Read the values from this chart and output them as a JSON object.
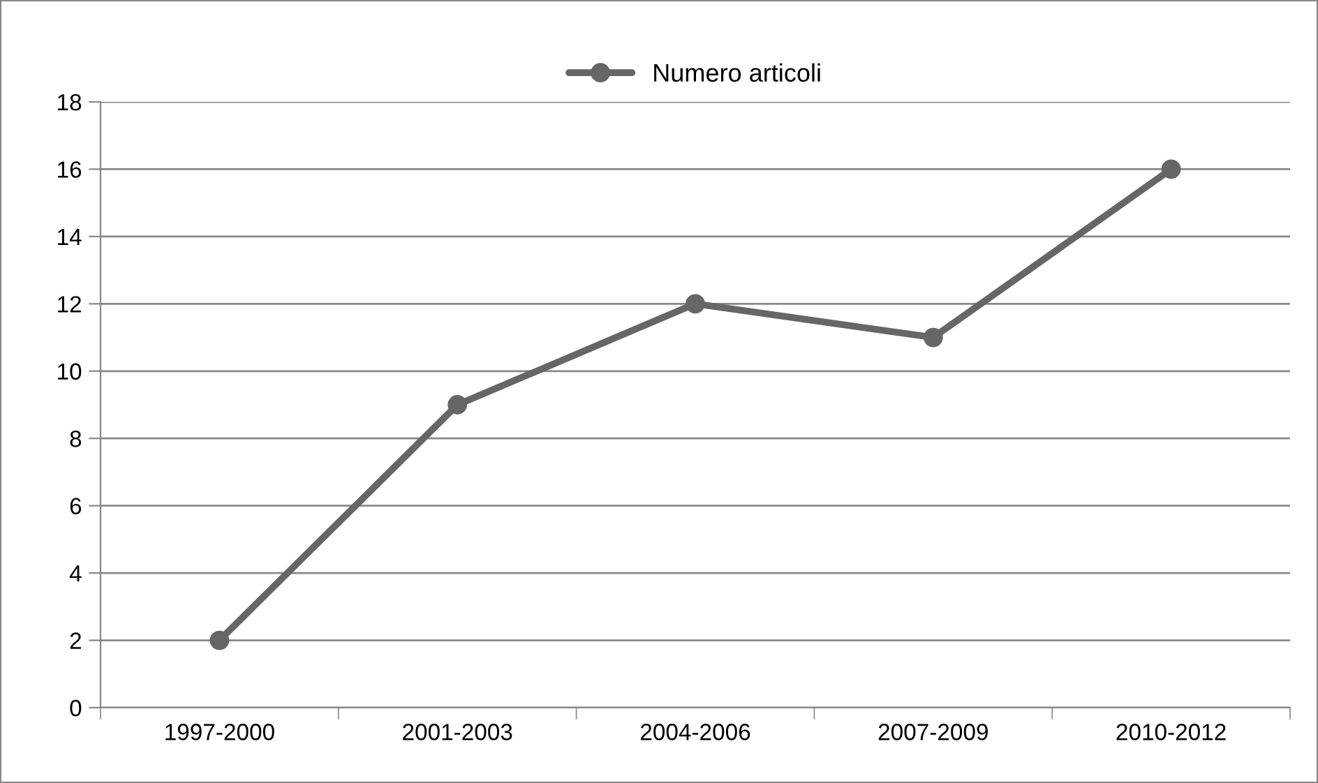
{
  "chart_data": {
    "type": "line",
    "categories": [
      "1997-2000",
      "2001-2003",
      "2004-2006",
      "2007-2009",
      "2010-2012"
    ],
    "series": [
      {
        "name": "Numero articoli",
        "color": "#666666",
        "values": [
          2,
          9,
          12,
          11,
          16
        ]
      }
    ],
    "ylim": [
      0,
      18
    ],
    "yticks": [
      0,
      2,
      4,
      6,
      8,
      10,
      12,
      14,
      16,
      18
    ],
    "grid": "y",
    "legend": "top",
    "marker": "circle",
    "line_style": "solid"
  }
}
